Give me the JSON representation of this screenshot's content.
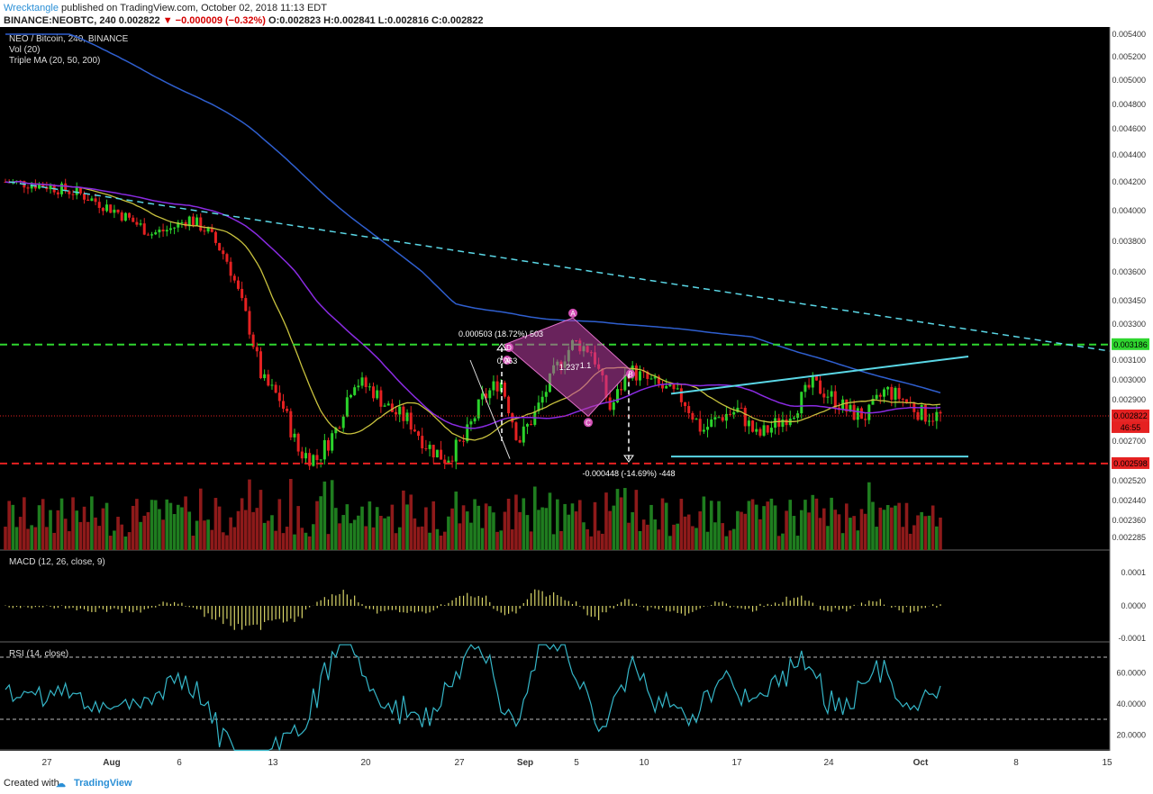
{
  "header": {
    "author": "Wrecktangle",
    "published": "published on TradingView.com, October 02, 2018 11:13 EDT",
    "ticker": "BINANCE:NEOBTC, 240",
    "last": "0.002822",
    "change": "−0.000009 (−0.32%)",
    "ohlc": "O:0.002823 H:0.002841 L:0.002816 C:0.002822"
  },
  "panes": {
    "main_title": "NEO / Bitcoin, 240, BINANCE",
    "vol_title": "Vol (20)",
    "ma_title": "Triple MA (20, 50, 200)",
    "macd_title": "MACD (12, 26, close, 9)",
    "rsi_title": "RSI (14, close)"
  },
  "colors": {
    "background": "#000000",
    "up": "#2bd32b",
    "down": "#e52121",
    "ma20": "#c9c23e",
    "ma50": "#8a2be2",
    "ma200": "#2f5fcf",
    "trendline": "#5ad7e6",
    "green_level": "#2fd62f",
    "red_level": "#e52121",
    "pattern": "#c040a8",
    "macd_hist": "#d8d468",
    "rsi": "#35b6c8"
  },
  "chart_data": [
    {
      "type": "candlestick",
      "title": "NEO / Bitcoin, 240, BINANCE",
      "x_ticks": [
        "27",
        "Aug",
        "6",
        "13",
        "20",
        "27",
        "Sep",
        "5",
        "10",
        "17",
        "24",
        "Oct",
        "8",
        "15"
      ],
      "y_ticks": [
        "0.005400",
        "0.005200",
        "0.005000",
        "0.004800",
        "0.004600",
        "0.004400",
        "0.004200",
        "0.004000",
        "0.003800",
        "0.003600",
        "0.003450",
        "0.003300",
        "0.003100",
        "0.003000",
        "0.002900",
        "0.002700",
        "0.002520",
        "0.002440",
        "0.002360",
        "0.002285"
      ],
      "price_labels": [
        "0.003186",
        "0.002822",
        "46:55",
        "0.002598"
      ],
      "approx_close_path": [
        [
          0,
          0.0042
        ],
        [
          4,
          0.00418
        ],
        [
          8,
          0.00412
        ],
        [
          12,
          0.004
        ],
        [
          16,
          0.00385
        ],
        [
          18,
          0.00388
        ],
        [
          20,
          0.00395
        ],
        [
          22,
          0.00387
        ],
        [
          24,
          0.0037
        ],
        [
          26,
          0.0034
        ],
        [
          28,
          0.003
        ],
        [
          30,
          0.0029
        ],
        [
          32,
          0.00265
        ],
        [
          34,
          0.00262
        ],
        [
          36,
          0.00275
        ],
        [
          38,
          0.003
        ],
        [
          40,
          0.00295
        ],
        [
          42,
          0.00285
        ],
        [
          44,
          0.0028
        ],
        [
          46,
          0.00268
        ],
        [
          48,
          0.00262
        ],
        [
          50,
          0.0027
        ],
        [
          52,
          0.0029
        ],
        [
          54,
          0.003
        ],
        [
          56,
          0.0027
        ],
        [
          58,
          0.00285
        ],
        [
          60,
          0.00305
        ],
        [
          62,
          0.0032
        ],
        [
          64,
          0.00315
        ],
        [
          66,
          0.00285
        ],
        [
          68,
          0.00305
        ],
        [
          70,
          0.003
        ],
        [
          72,
          0.00295
        ],
        [
          74,
          0.0029
        ],
        [
          76,
          0.00275
        ],
        [
          78,
          0.00282
        ],
        [
          80,
          0.00285
        ],
        [
          82,
          0.00272
        ],
        [
          84,
          0.00278
        ],
        [
          86,
          0.00285
        ],
        [
          88,
          0.00298
        ],
        [
          90,
          0.00292
        ],
        [
          92,
          0.00284
        ],
        [
          94,
          0.00282
        ],
        [
          96,
          0.00295
        ],
        [
          98,
          0.0029
        ],
        [
          100,
          0.00283
        ],
        [
          102,
          0.00282
        ]
      ],
      "levels": [
        {
          "value": 0.003186,
          "label": "0.003186",
          "style": "dashed",
          "color": "green"
        },
        {
          "value": 0.002598,
          "label": "0.002598",
          "style": "dashed",
          "color": "red"
        },
        {
          "value": 0.002822,
          "label": "0.002822",
          "style": "dotted",
          "color": "red"
        }
      ],
      "annotations": {
        "measure_up": "0.000503 (18.72%) 503",
        "measure_down": "-0.000448 (-14.69%) -448",
        "pattern_points": [
          "X",
          "A",
          "B",
          "C",
          "D"
        ],
        "pattern_ratios": [
          "0.963",
          "1.237",
          "1.1"
        ]
      }
    },
    {
      "type": "bar",
      "title": "MACD (12, 26, close, 9)",
      "y_ticks": [
        "0.0001",
        "0.0000",
        "-0.0001"
      ]
    },
    {
      "type": "line",
      "title": "RSI (14, close)",
      "y_ticks": [
        "60.0000",
        "40.0000",
        "20.0000"
      ],
      "bands": [
        70,
        30
      ]
    }
  ],
  "footer": {
    "created_with": "Created with",
    "brand": "TradingView"
  }
}
